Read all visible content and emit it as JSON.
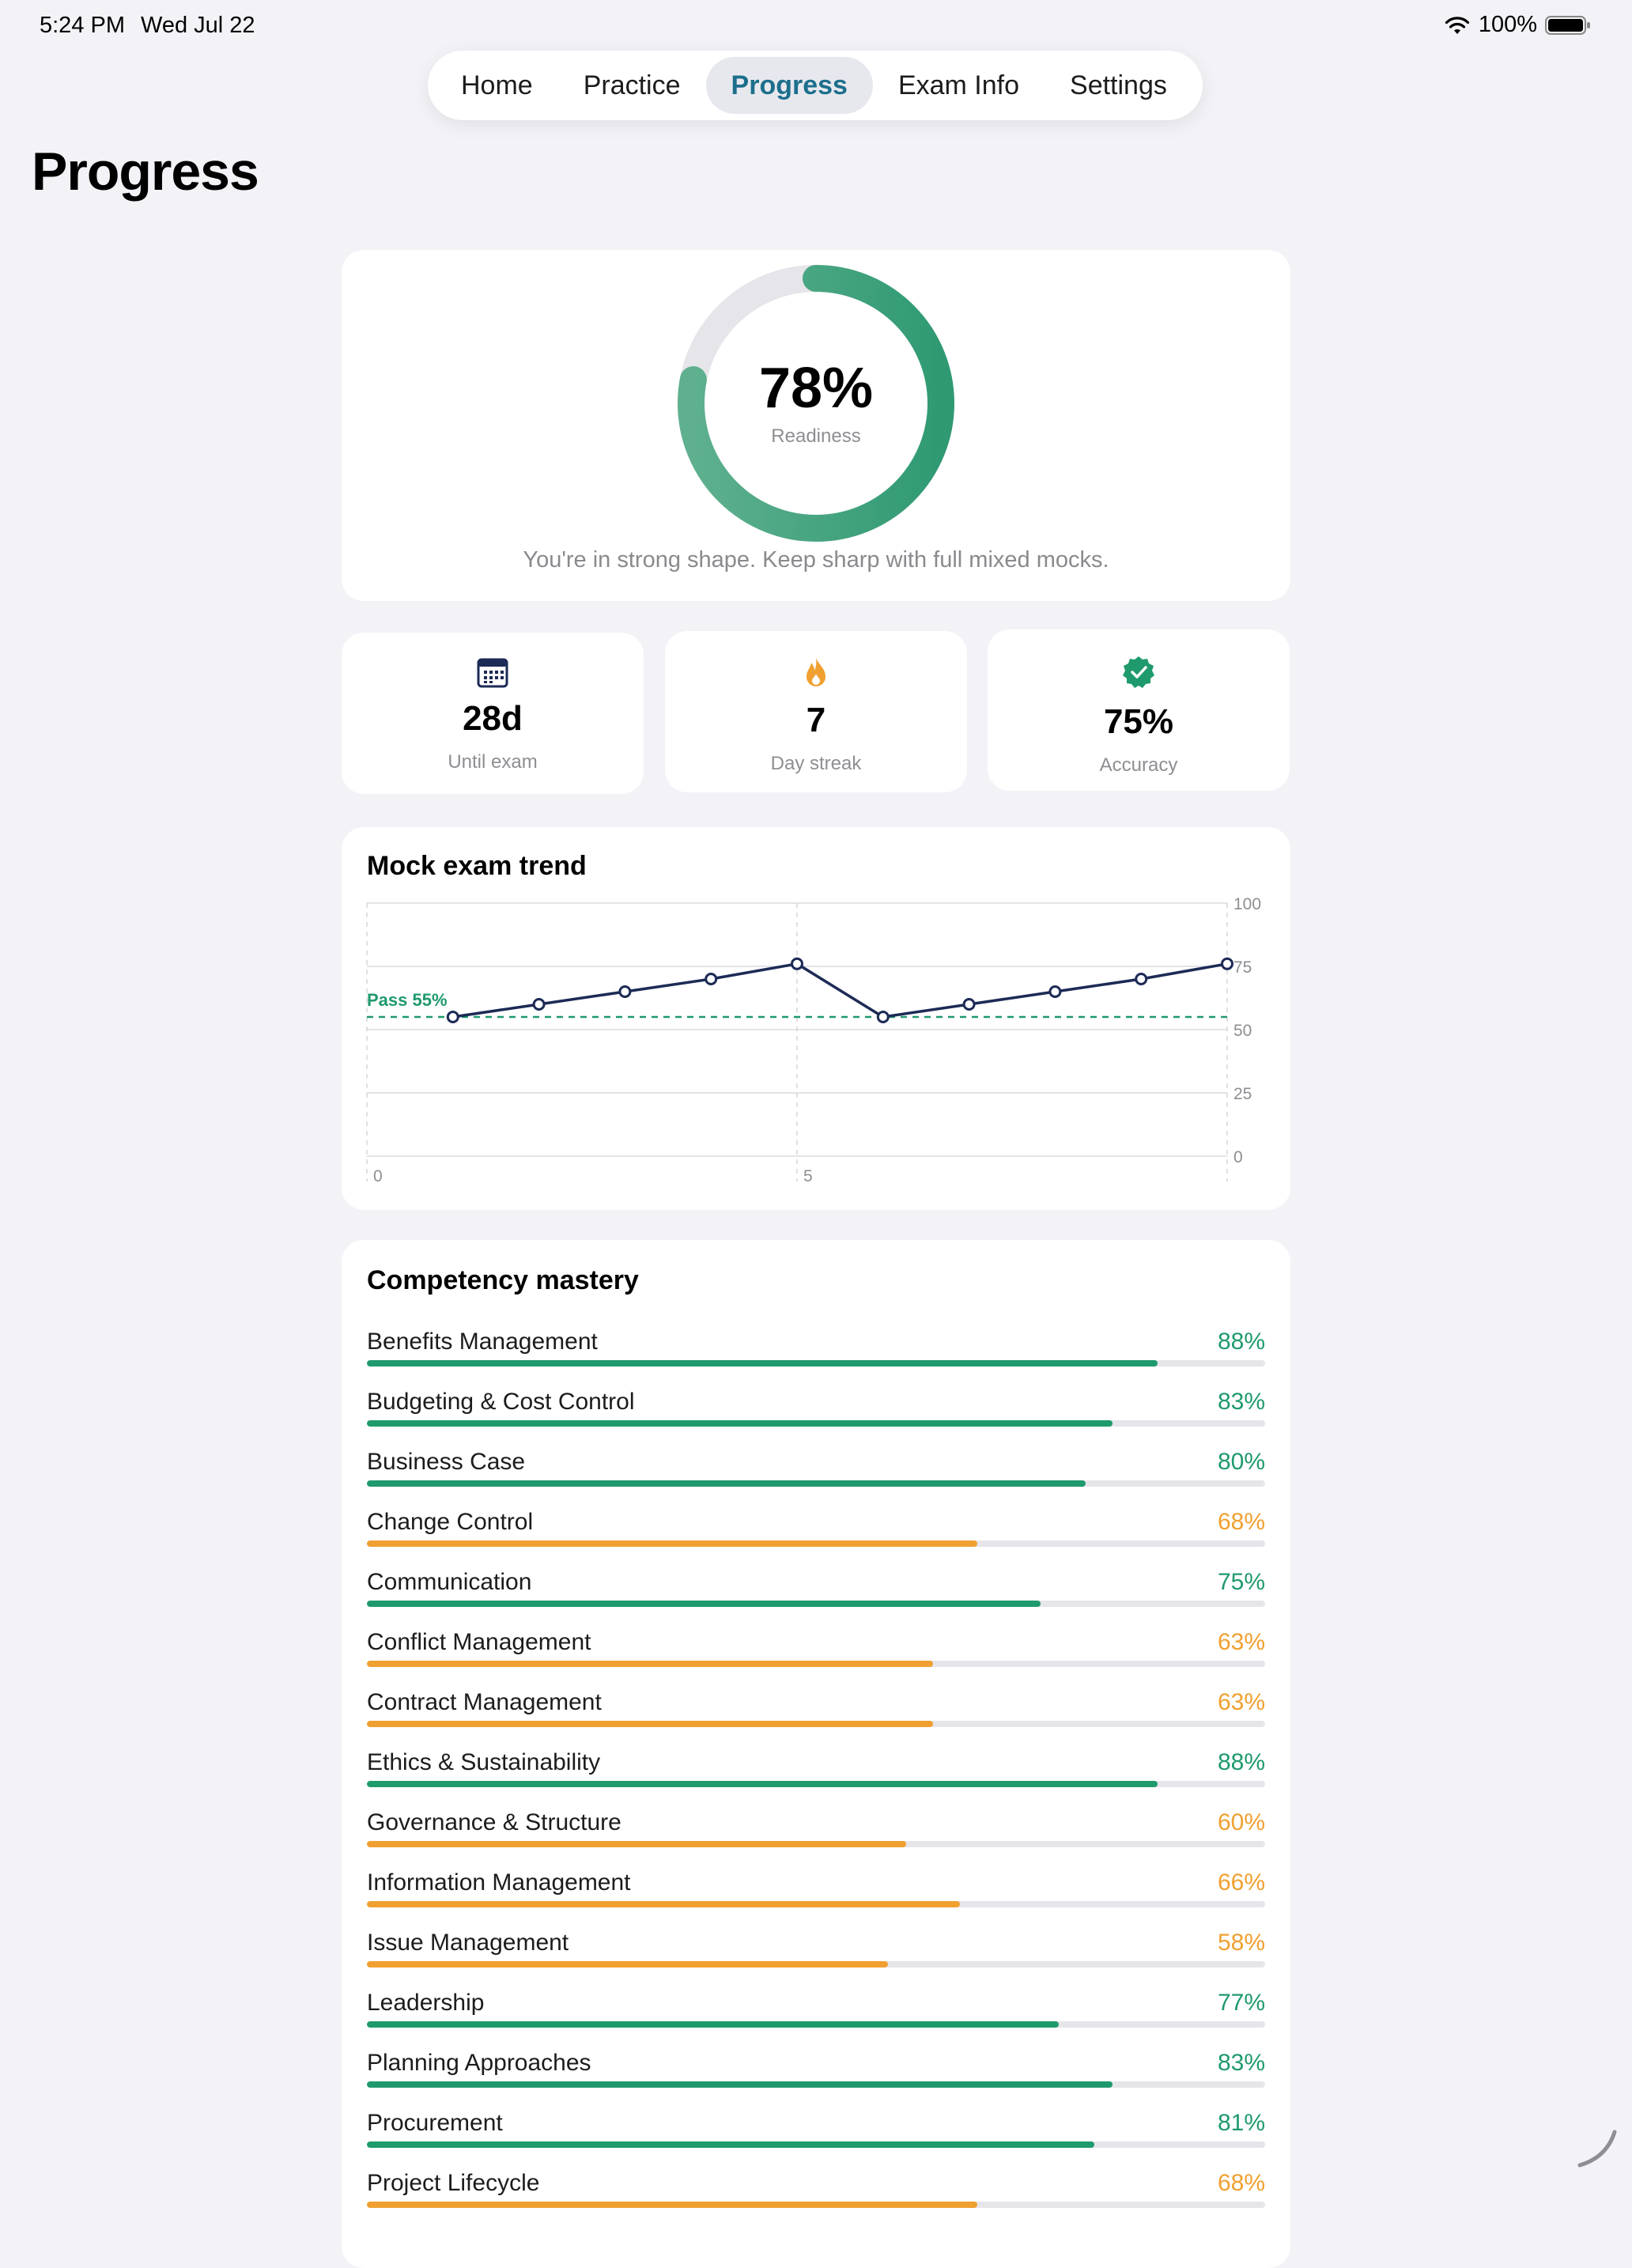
{
  "status": {
    "time": "5:24 PM",
    "date": "Wed Jul 22",
    "battery": "100%"
  },
  "nav": {
    "items": [
      {
        "label": "Home",
        "active": false
      },
      {
        "label": "Practice",
        "active": false
      },
      {
        "label": "Progress",
        "active": true
      },
      {
        "label": "Exam Info",
        "active": false
      },
      {
        "label": "Settings",
        "active": false
      }
    ]
  },
  "page_title": "Progress",
  "readiness": {
    "value": "78%",
    "fraction": 0.78,
    "label": "Readiness",
    "message": "You're in strong shape. Keep sharp with full mixed mocks."
  },
  "stats": [
    {
      "icon": "calendar-icon",
      "value": "28d",
      "label": "Until exam",
      "color": "#1c2a55"
    },
    {
      "icon": "flame-icon",
      "value": "7",
      "label": "Day streak",
      "color": "#f0a030"
    },
    {
      "icon": "verified-badge-icon",
      "value": "75%",
      "label": "Accuracy",
      "color": "#1f9a6c"
    }
  ],
  "chart_data": {
    "type": "line",
    "title": "Mock exam trend",
    "x": [
      1,
      2,
      3,
      4,
      5,
      6,
      7,
      8,
      9,
      10
    ],
    "series": [
      {
        "values": [
          55,
          60,
          65,
          70,
          76,
          55,
          60,
          65,
          70,
          76
        ]
      }
    ],
    "xlim": [
      0,
      10
    ],
    "ylim": [
      0,
      100
    ],
    "x_ticks": [
      "0",
      "5"
    ],
    "y_ticks": [
      "100",
      "75",
      "50",
      "25",
      "0"
    ],
    "pass_line": {
      "value": 55,
      "label": "Pass 55%"
    },
    "grid": true
  },
  "mastery": {
    "title": "Competency mastery",
    "colors": {
      "good": "#1f9a6c",
      "warn": "#f0a030"
    },
    "items": [
      {
        "name": "Benefits Management",
        "pct": "88%",
        "value": 88
      },
      {
        "name": "Budgeting & Cost Control",
        "pct": "83%",
        "value": 83
      },
      {
        "name": "Business Case",
        "pct": "80%",
        "value": 80
      },
      {
        "name": "Change Control",
        "pct": "68%",
        "value": 68
      },
      {
        "name": "Communication",
        "pct": "75%",
        "value": 75
      },
      {
        "name": "Conflict Management",
        "pct": "63%",
        "value": 63
      },
      {
        "name": "Contract Management",
        "pct": "63%",
        "value": 63
      },
      {
        "name": "Ethics & Sustainability",
        "pct": "88%",
        "value": 88
      },
      {
        "name": "Governance & Structure",
        "pct": "60%",
        "value": 60
      },
      {
        "name": "Information Management",
        "pct": "66%",
        "value": 66
      },
      {
        "name": "Issue Management",
        "pct": "58%",
        "value": 58
      },
      {
        "name": "Leadership",
        "pct": "77%",
        "value": 77
      },
      {
        "name": "Planning Approaches",
        "pct": "83%",
        "value": 83
      },
      {
        "name": "Procurement",
        "pct": "81%",
        "value": 81
      },
      {
        "name": "Project Lifecycle",
        "pct": "68%",
        "value": 68
      }
    ]
  }
}
